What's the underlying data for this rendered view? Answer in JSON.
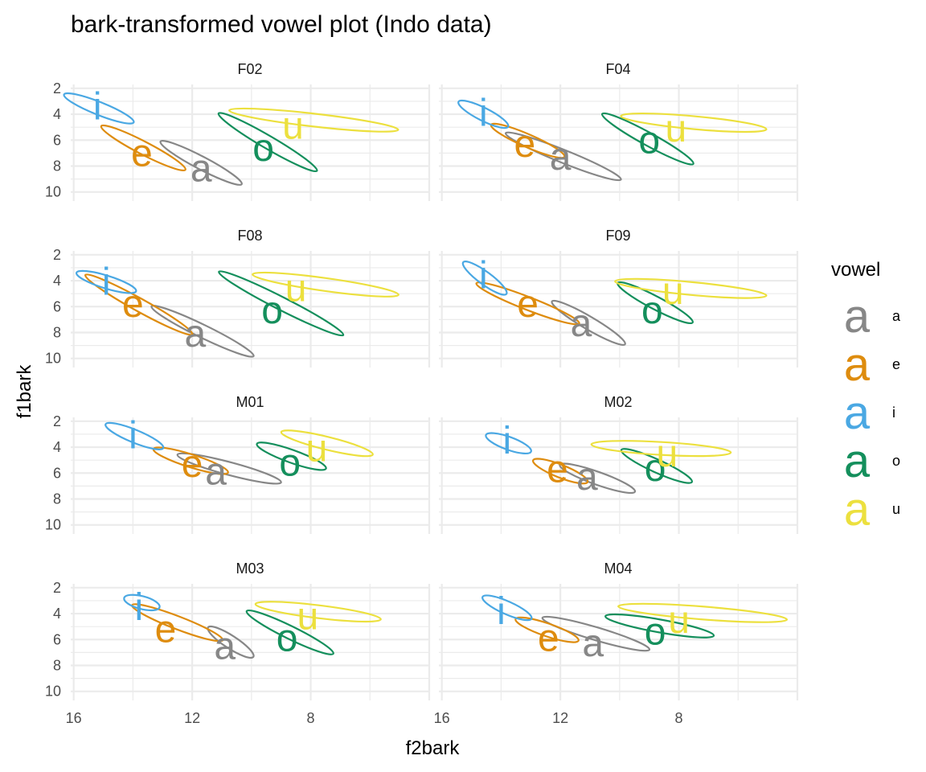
{
  "chart_data": {
    "type": "scatter",
    "title": "bark-transformed vowel plot (Indo data)",
    "xlabel": "f2bark",
    "ylabel": "f1bark",
    "x_reversed": true,
    "y_reversed": true,
    "xlim": [
      16.1,
      4.0
    ],
    "ylim": [
      1.7,
      10.7
    ],
    "x_ticks": [
      16,
      12,
      8
    ],
    "y_ticks": [
      2,
      4,
      6,
      8,
      10
    ],
    "grid": true,
    "facet_layout": "4 rows x 2 columns",
    "legend": {
      "title": "vowel",
      "position": "right",
      "key_glyph": "a",
      "entries": [
        "a",
        "e",
        "i",
        "o",
        "u"
      ]
    },
    "colors": {
      "a": "#878787",
      "e": "#de8c0e",
      "i": "#4aa8e3",
      "o": "#148f5c",
      "u": "#ece03e",
      "grid": "#ebebeb"
    },
    "panels": [
      {
        "name": "F02",
        "vowels": [
          {
            "vowel": "a",
            "f2": 11.7,
            "f1": 8.2,
            "ellipse": {
              "f2": [
                13.0,
                10.4
              ],
              "f1": [
                5.7,
                9.8
              ]
            }
          },
          {
            "vowel": "e",
            "f2": 13.7,
            "f1": 7.0,
            "ellipse": {
              "f2": [
                15.0,
                12.3
              ],
              "f1": [
                4.5,
                8.7
              ]
            }
          },
          {
            "vowel": "i",
            "f2": 15.2,
            "f1": 3.4,
            "ellipse": {
              "f2": [
                16.3,
                14.0
              ],
              "f1": [
                2.2,
                4.9
              ]
            }
          },
          {
            "vowel": "o",
            "f2": 9.6,
            "f1": 6.6,
            "ellipse": {
              "f2": [
                11.0,
                7.9
              ],
              "f1": [
                3.4,
                8.9
              ]
            }
          },
          {
            "vowel": "u",
            "f2": 8.6,
            "f1": 4.9,
            "ellipse": {
              "f2": [
                10.8,
                5.0
              ],
              "f1": [
                3.5,
                5.4
              ]
            }
          }
        ]
      },
      {
        "name": "F04",
        "vowels": [
          {
            "vowel": "a",
            "f2": 12.0,
            "f1": 7.3,
            "ellipse": {
              "f2": [
                13.8,
                10.0
              ],
              "f1": [
                5.0,
                9.5
              ]
            }
          },
          {
            "vowel": "e",
            "f2": 13.2,
            "f1": 6.3,
            "ellipse": {
              "f2": [
                14.3,
                11.9
              ],
              "f1": [
                4.5,
                7.6
              ]
            }
          },
          {
            "vowel": "i",
            "f2": 14.6,
            "f1": 3.9,
            "ellipse": {
              "f2": [
                15.4,
                13.8
              ],
              "f1": [
                2.8,
                5.2
              ]
            }
          },
          {
            "vowel": "o",
            "f2": 9.0,
            "f1": 6.0,
            "ellipse": {
              "f2": [
                10.5,
                7.6
              ],
              "f1": [
                3.5,
                8.3
              ]
            }
          },
          {
            "vowel": "u",
            "f2": 8.1,
            "f1": 5.1,
            "ellipse": {
              "f2": [
                10.0,
                5.0
              ],
              "f1": [
                4.0,
                5.3
              ]
            }
          }
        ]
      },
      {
        "name": "F08",
        "vowels": [
          {
            "vowel": "a",
            "f2": 11.9,
            "f1": 8.1,
            "ellipse": {
              "f2": [
                13.3,
                10.0
              ],
              "f1": [
                5.5,
                10.3
              ]
            }
          },
          {
            "vowel": "e",
            "f2": 14.0,
            "f1": 5.8,
            "ellipse": {
              "f2": [
                15.5,
                12.1
              ],
              "f1": [
                3.0,
                8.7
              ]
            }
          },
          {
            "vowel": "i",
            "f2": 14.9,
            "f1": 4.1,
            "ellipse": {
              "f2": [
                15.9,
                13.9
              ],
              "f1": [
                3.2,
                5.0
              ]
            }
          },
          {
            "vowel": "o",
            "f2": 9.3,
            "f1": 6.3,
            "ellipse": {
              "f2": [
                11.0,
                7.0
              ],
              "f1": [
                2.7,
                8.8
              ]
            }
          },
          {
            "vowel": "u",
            "f2": 8.5,
            "f1": 4.6,
            "ellipse": {
              "f2": [
                10.0,
                5.0
              ],
              "f1": [
                3.3,
                5.3
              ]
            }
          }
        ]
      },
      {
        "name": "F09",
        "vowels": [
          {
            "vowel": "a",
            "f2": 11.3,
            "f1": 7.3,
            "ellipse": {
              "f2": [
                12.2,
                9.9
              ],
              "f1": [
                5.2,
                9.3
              ]
            }
          },
          {
            "vowel": "e",
            "f2": 13.1,
            "f1": 5.8,
            "ellipse": {
              "f2": [
                14.8,
                11.4
              ],
              "f1": [
                3.8,
                7.7
              ]
            }
          },
          {
            "vowel": "i",
            "f2": 14.6,
            "f1": 3.6,
            "ellipse": {
              "f2": [
                15.2,
                13.9
              ],
              "f1": [
                2.3,
                5.3
              ]
            }
          },
          {
            "vowel": "o",
            "f2": 8.9,
            "f1": 6.3,
            "ellipse": {
              "f2": [
                10.0,
                7.6
              ],
              "f1": [
                3.8,
                7.6
              ]
            }
          },
          {
            "vowel": "u",
            "f2": 8.2,
            "f1": 4.8,
            "ellipse": {
              "f2": [
                10.2,
                5.0
              ],
              "f1": [
                3.9,
                5.3
              ]
            }
          }
        ]
      },
      {
        "name": "M01",
        "vowels": [
          {
            "vowel": "a",
            "f2": 11.2,
            "f1": 5.9,
            "ellipse": {
              "f2": [
                12.5,
                9.0
              ],
              "f1": [
                4.3,
                7.0
              ]
            }
          },
          {
            "vowel": "e",
            "f2": 12.0,
            "f1": 5.3,
            "ellipse": {
              "f2": [
                13.3,
                10.8
              ],
              "f1": [
                3.9,
                6.2
              ]
            }
          },
          {
            "vowel": "i",
            "f2": 14.0,
            "f1": 3.1,
            "ellipse": {
              "f2": [
                14.9,
                13.0
              ],
              "f1": [
                2.0,
                4.3
              ]
            }
          },
          {
            "vowel": "o",
            "f2": 8.7,
            "f1": 5.2,
            "ellipse": {
              "f2": [
                9.8,
                7.5
              ],
              "f1": [
                3.5,
                5.9
              ]
            }
          },
          {
            "vowel": "u",
            "f2": 7.8,
            "f1": 4.1,
            "ellipse": {
              "f2": [
                9.0,
                5.9
              ],
              "f1": [
                2.6,
                4.8
              ]
            }
          }
        ]
      },
      {
        "name": "M02",
        "vowels": [
          {
            "vowel": "a",
            "f2": 11.1,
            "f1": 6.3,
            "ellipse": {
              "f2": [
                12.0,
                9.5
              ],
              "f1": [
                5.1,
                7.7
              ]
            }
          },
          {
            "vowel": "e",
            "f2": 12.1,
            "f1": 5.7,
            "ellipse": {
              "f2": [
                12.9,
                11.1
              ],
              "f1": [
                4.8,
                6.9
              ]
            }
          },
          {
            "vowel": "i",
            "f2": 13.8,
            "f1": 3.5,
            "ellipse": {
              "f2": [
                14.5,
                13.0
              ],
              "f1": [
                2.9,
                4.5
              ]
            }
          },
          {
            "vowel": "o",
            "f2": 8.8,
            "f1": 5.6,
            "ellipse": {
              "f2": [
                9.9,
                7.6
              ],
              "f1": [
                3.9,
                7.0
              ]
            }
          },
          {
            "vowel": "u",
            "f2": 8.4,
            "f1": 4.5,
            "ellipse": {
              "f2": [
                11.0,
                6.2
              ],
              "f1": [
                3.7,
                4.5
              ]
            }
          }
        ]
      },
      {
        "name": "M03",
        "vowels": [
          {
            "vowel": "a",
            "f2": 10.9,
            "f1": 6.5,
            "ellipse": {
              "f2": [
                11.4,
                10.0
              ],
              "f1": [
                4.8,
                7.6
              ]
            }
          },
          {
            "vowel": "e",
            "f2": 12.9,
            "f1": 5.2,
            "ellipse": {
              "f2": [
                14.0,
                11.0
              ],
              "f1": [
                3.0,
                6.4
              ]
            }
          },
          {
            "vowel": "i",
            "f2": 13.8,
            "f1": 3.5,
            "ellipse": {
              "f2": [
                14.3,
                13.1
              ],
              "f1": [
                2.7,
                3.6
              ]
            }
          },
          {
            "vowel": "o",
            "f2": 8.8,
            "f1": 5.9,
            "ellipse": {
              "f2": [
                10.1,
                7.3
              ],
              "f1": [
                3.4,
                7.5
              ]
            }
          },
          {
            "vowel": "u",
            "f2": 8.1,
            "f1": 4.2,
            "ellipse": {
              "f2": [
                9.9,
                5.6
              ],
              "f1": [
                3.1,
                4.6
              ]
            }
          }
        ]
      },
      {
        "name": "M04",
        "vowels": [
          {
            "vowel": "a",
            "f2": 10.9,
            "f1": 6.3,
            "ellipse": {
              "f2": [
                12.6,
                9.0
              ],
              "f1": [
                4.0,
                7.1
              ]
            }
          },
          {
            "vowel": "e",
            "f2": 12.4,
            "f1": 5.9,
            "ellipse": {
              "f2": [
                13.5,
                11.4
              ],
              "f1": [
                4.2,
                6.3
              ]
            }
          },
          {
            "vowel": "i",
            "f2": 14.0,
            "f1": 3.8,
            "ellipse": {
              "f2": [
                14.6,
                13.0
              ],
              "f1": [
                2.5,
                4.6
              ]
            }
          },
          {
            "vowel": "o",
            "f2": 8.8,
            "f1": 5.4,
            "ellipse": {
              "f2": [
                10.5,
                6.8
              ],
              "f1": [
                4.0,
                5.9
              ]
            }
          },
          {
            "vowel": "u",
            "f2": 8.0,
            "f1": 4.5,
            "ellipse": {
              "f2": [
                10.1,
                4.3
              ],
              "f1": [
                3.3,
                4.6
              ]
            }
          }
        ]
      }
    ]
  }
}
